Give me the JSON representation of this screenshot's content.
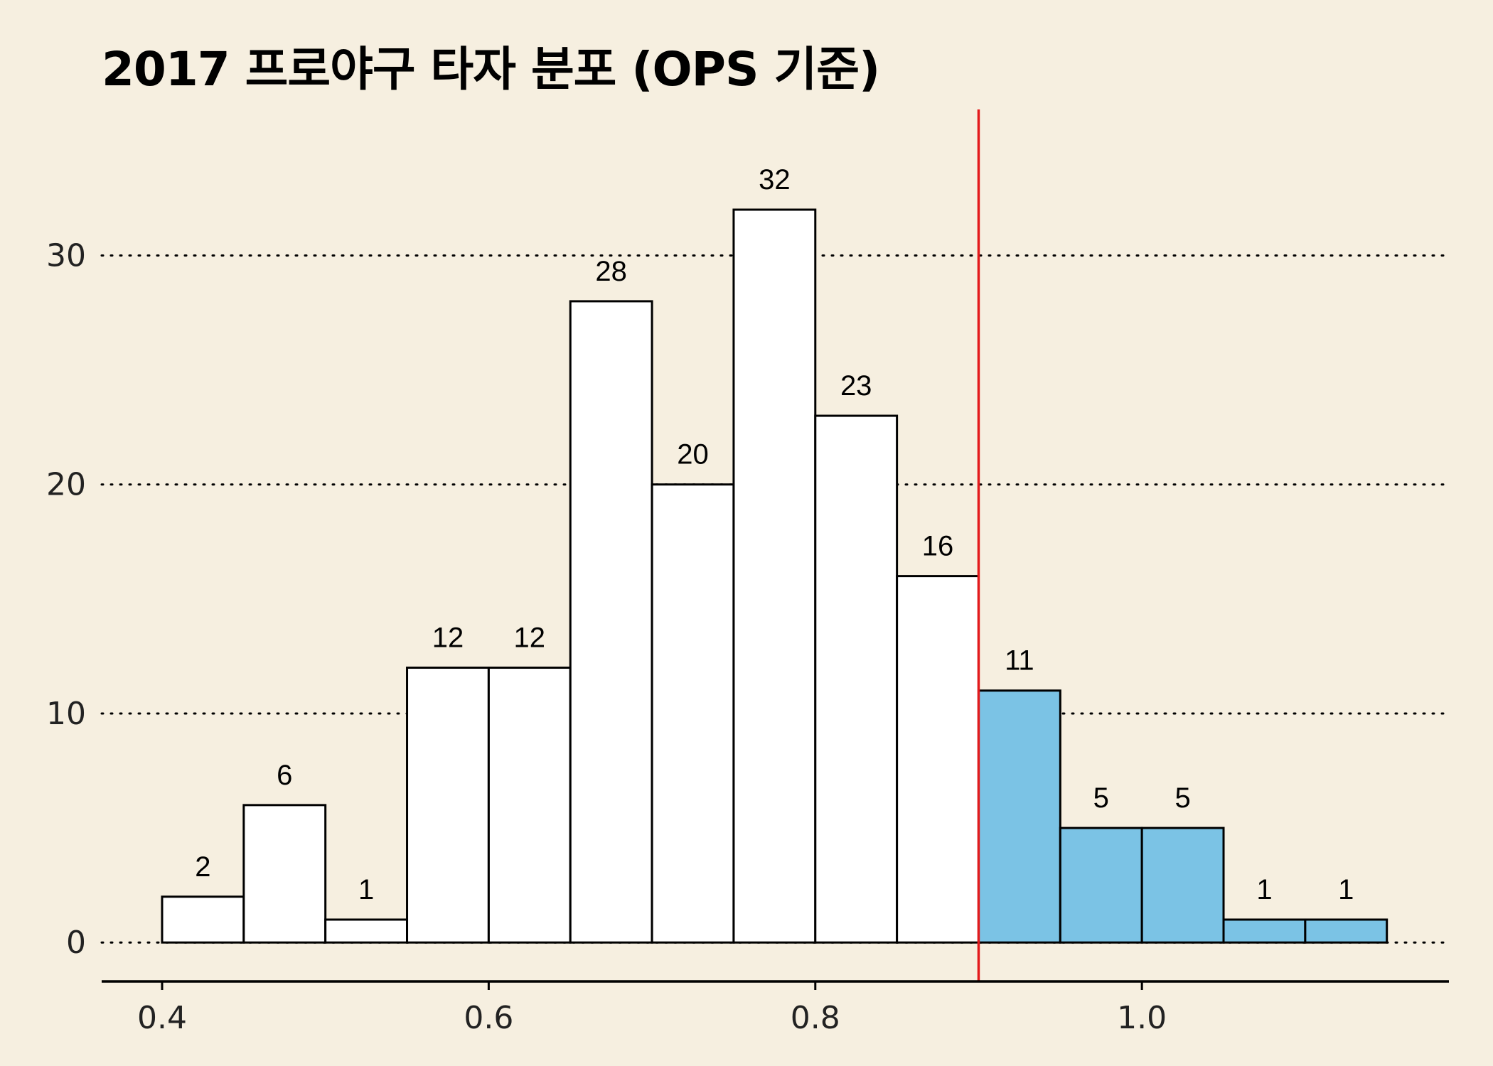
{
  "chart_data": {
    "type": "bar",
    "title": "2017 프로야구 타자 분포 (OPS 기준)",
    "xlabel": "",
    "ylabel": "",
    "bin_width": 0.05,
    "bins": [
      [
        0.4,
        0.45
      ],
      [
        0.45,
        0.5
      ],
      [
        0.5,
        0.55
      ],
      [
        0.55,
        0.6
      ],
      [
        0.6,
        0.65
      ],
      [
        0.65,
        0.7
      ],
      [
        0.7,
        0.75
      ],
      [
        0.75,
        0.8
      ],
      [
        0.8,
        0.85
      ],
      [
        0.85,
        0.9
      ],
      [
        0.9,
        0.95
      ],
      [
        0.95,
        1.0
      ],
      [
        1.0,
        1.05
      ],
      [
        1.05,
        1.1
      ],
      [
        1.1,
        1.15
      ]
    ],
    "values": [
      2,
      6,
      1,
      12,
      12,
      28,
      20,
      32,
      23,
      16,
      11,
      5,
      5,
      1,
      1
    ],
    "data_labels": [
      "2",
      "6",
      "1",
      "12",
      "12",
      "28",
      "20",
      "32",
      "23",
      "16",
      "11",
      "5",
      "5",
      "1",
      "1"
    ],
    "highlight_threshold": 0.9,
    "xlim": [
      0.363,
      1.188
    ],
    "ylim": [
      -1.7,
      36.5
    ],
    "xticks": [
      0.4,
      0.6,
      0.8,
      1.0
    ],
    "xtick_labels": [
      "0.4",
      "0.6",
      "0.8",
      "1.0"
    ],
    "yticks": [
      0,
      10,
      20,
      30
    ],
    "ytick_labels": [
      "0",
      "10",
      "20",
      "30"
    ],
    "grid": "horizontal dotted",
    "legend": "none",
    "colors": {
      "background": "#F6EFE0",
      "bar_default": "#FFFFFF",
      "bar_highlight": "#7BC3E5",
      "bar_outline": "#000000",
      "threshold_line": "#E31A1C",
      "grid": "#000000"
    }
  }
}
